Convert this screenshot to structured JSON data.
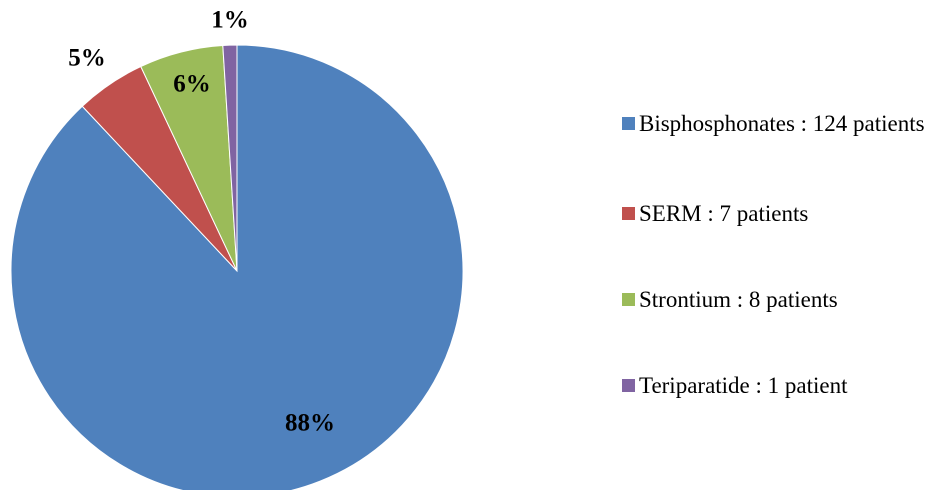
{
  "chart_data": {
    "type": "pie",
    "categories": [
      "Bisphosphonates : 124 patients",
      "SERM : 7 patients",
      "Strontium : 8 patients",
      "Teriparatide : 1 patient"
    ],
    "values": [
      88,
      5,
      6,
      1
    ],
    "value_labels": [
      "88%",
      "5%",
      "6%",
      "1%"
    ],
    "colors": [
      "#4f81bd",
      "#c0504d",
      "#9bbb59",
      "#8064a2"
    ],
    "legend": "right"
  }
}
